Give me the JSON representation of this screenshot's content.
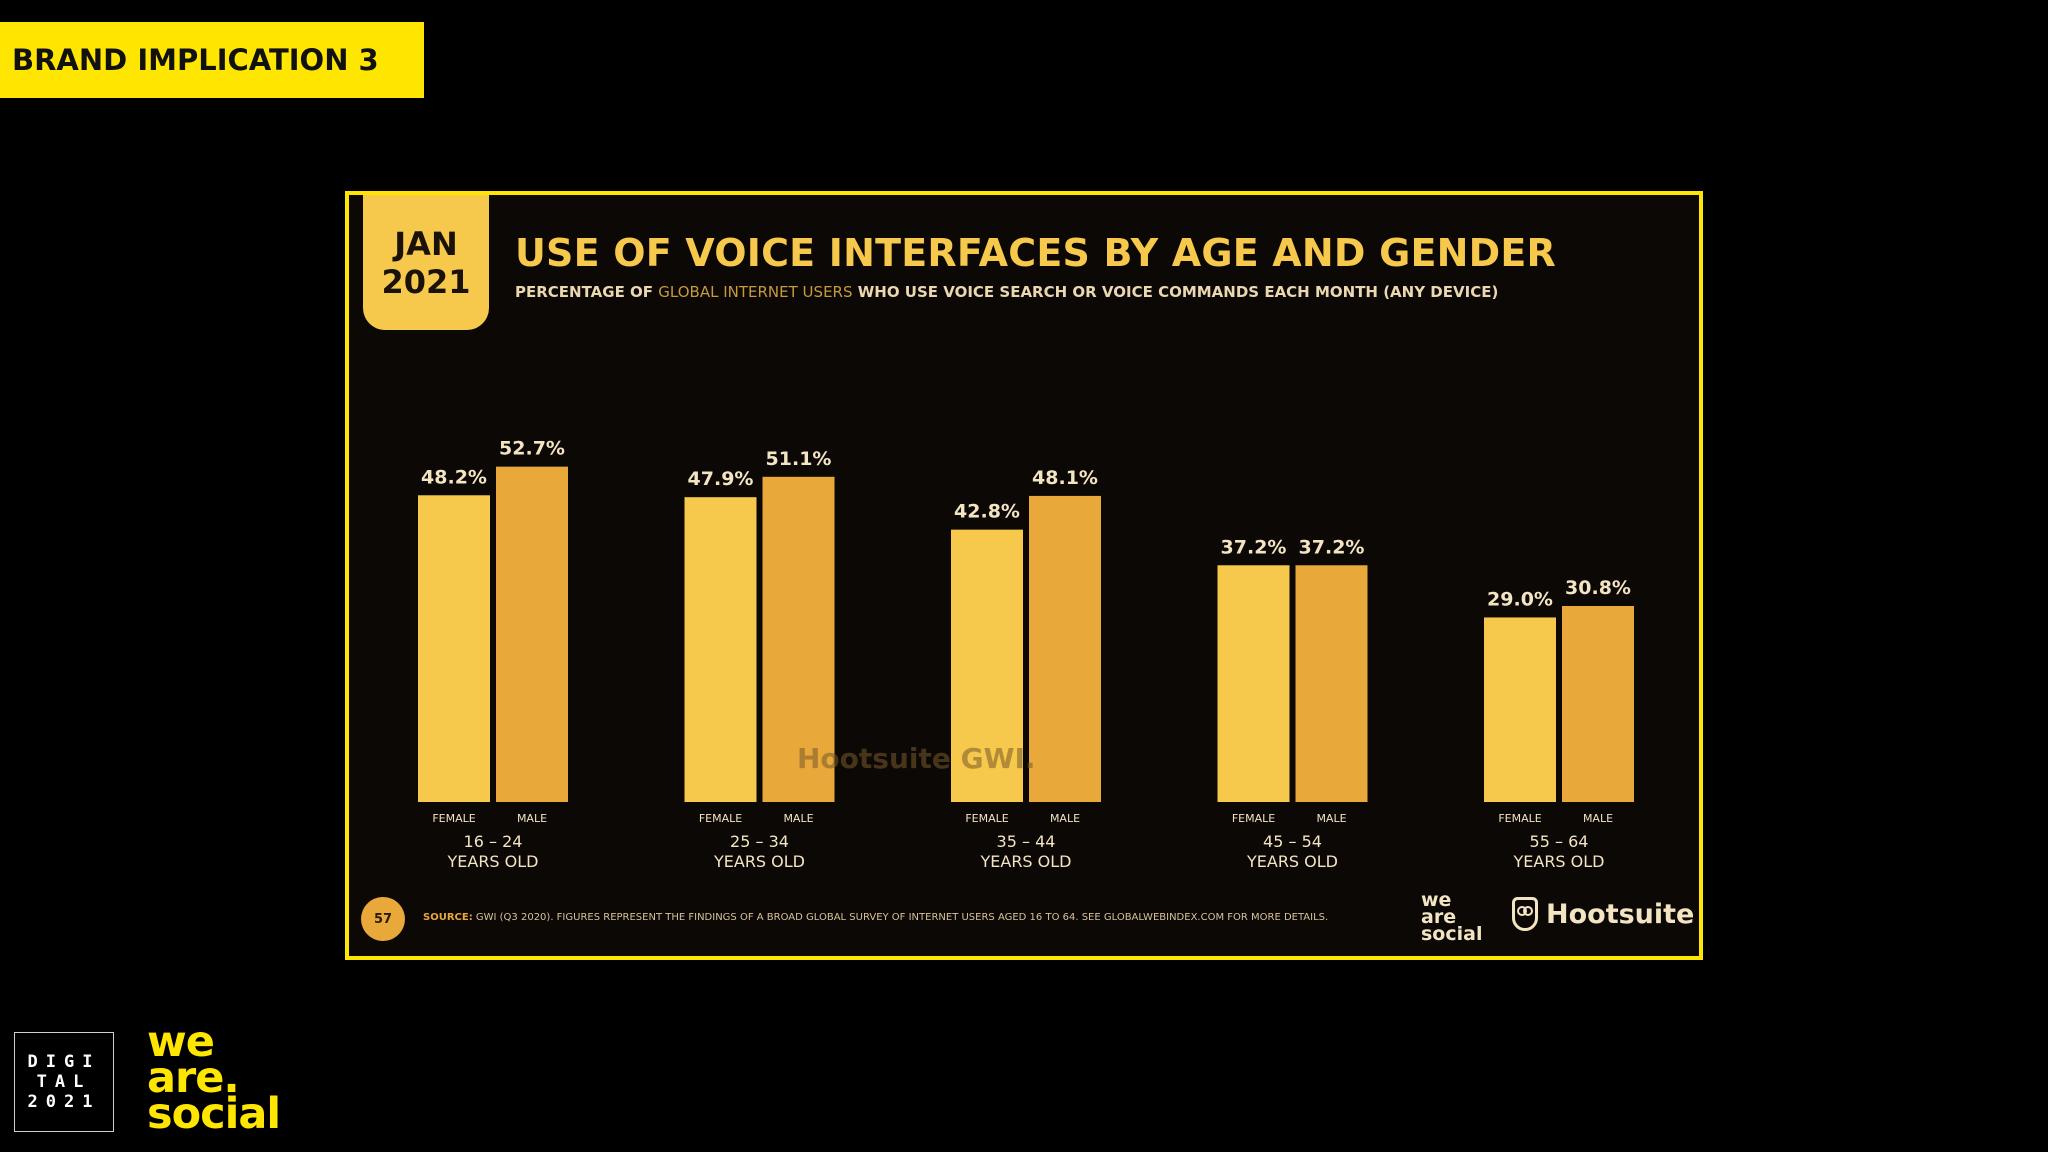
{
  "slide_tag": "BRAND IMPLICATION 3",
  "badge": {
    "month": "JAN",
    "year": "2021"
  },
  "header": {
    "title": "USE OF VOICE INTERFACES BY AGE AND GENDER",
    "subtitle_pre": "PERCENTAGE OF",
    "subtitle_highlight": "GLOBAL INTERNET USERS",
    "subtitle_post": "WHO USE VOICE SEARCH OR VOICE COMMANDS EACH MONTH (ANY DEVICE)"
  },
  "footer": {
    "page_number": "57",
    "source_label": "SOURCE:",
    "source_text": "GWI (Q3 2020). FIGURES REPRESENT THE FINDINGS OF A BROAD GLOBAL SURVEY OF INTERNET USERS AGED 16 TO 64. SEE GLOBALWEBINDEX.COM FOR MORE DETAILS.",
    "hootsuite": "Hootsuite",
    "was_lines": [
      "we",
      "are",
      "social"
    ]
  },
  "watermark": "Hootsuite GWI.",
  "branding": {
    "digital_lines": [
      "DIGI",
      "TAL",
      "2021"
    ],
    "was_lines": [
      "we",
      "are.",
      "social"
    ]
  },
  "colors": {
    "female": "#f6c84b",
    "male": "#e9a83a",
    "accent": "#ffe600",
    "label": "#f3e4c2"
  },
  "chart_data": {
    "type": "bar",
    "title": "USE OF VOICE INTERFACES BY AGE AND GENDER",
    "categories": [
      "16 – 24",
      "25 – 34",
      "35 – 44",
      "45 – 54",
      "55 – 64"
    ],
    "category_suffix": "YEARS OLD",
    "series": [
      {
        "name": "FEMALE",
        "values": [
          48.2,
          47.9,
          42.8,
          37.2,
          29.0
        ],
        "labels": [
          "48.2%",
          "47.9%",
          "42.8%",
          "37.2%",
          "29.0%"
        ]
      },
      {
        "name": "MALE",
        "values": [
          52.7,
          51.1,
          48.1,
          37.2,
          30.8
        ],
        "labels": [
          "52.7%",
          "51.1%",
          "48.1%",
          "37.2%",
          "30.8%"
        ]
      }
    ],
    "ylim": [
      0,
      55
    ],
    "xlabel": "",
    "ylabel": ""
  }
}
